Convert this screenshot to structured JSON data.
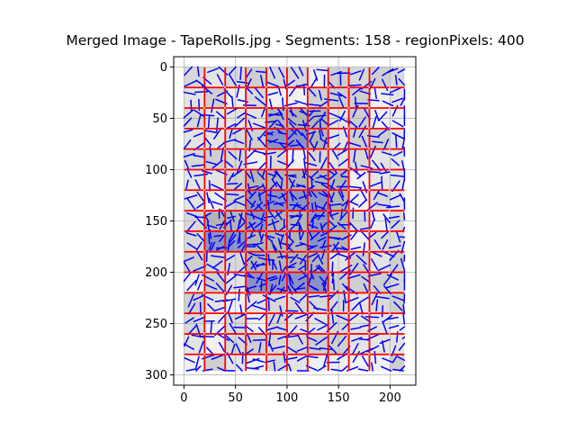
{
  "chart_data": {
    "type": "heatmap",
    "title": "Merged Image - TapeRolls.jpg - Segments: 158 - regionPixels: 400",
    "xlabel": "",
    "ylabel": "",
    "xlim": [
      -10,
      225
    ],
    "ylim": [
      310,
      -10
    ],
    "y_inverted": true,
    "grid": true,
    "x_ticks": [
      0,
      50,
      100,
      150,
      200
    ],
    "y_ticks": [
      0,
      50,
      100,
      150,
      200,
      250,
      300
    ],
    "image_extent": {
      "x": [
        0,
        214
      ],
      "y": [
        0,
        296
      ]
    },
    "cell_size": 20,
    "colors": {
      "grid_line": "#b0b0b0",
      "segment_boundary": "#ff0000",
      "direction_stroke": "#0000ff",
      "light_region": "#ebebeb",
      "mid_region": "#cdcdcd",
      "dark_region": "#b4b4b4",
      "highlight_region": "#8c93c4",
      "background_cells": [
        "#f0f0f0",
        "#e4e4e4",
        "#d8d8d8",
        "#cfcfcf"
      ]
    },
    "dark_regions": [
      {
        "x": [
          80,
          140
        ],
        "y": [
          40,
          80
        ]
      },
      {
        "x": [
          60,
          160
        ],
        "y": [
          100,
          140
        ]
      },
      {
        "x": [
          40,
          160
        ],
        "y": [
          140,
          180
        ]
      },
      {
        "x": [
          60,
          140
        ],
        "y": [
          180,
          220
        ]
      },
      {
        "x": [
          20,
          60
        ],
        "y": [
          140,
          180
        ]
      }
    ],
    "highlight_regions": [
      {
        "x": [
          80,
          120
        ],
        "y": [
          60,
          80
        ]
      },
      {
        "x": [
          60,
          140
        ],
        "y": [
          120,
          140
        ]
      },
      {
        "x": [
          60,
          80
        ],
        "y": [
          140,
          160
        ]
      },
      {
        "x": [
          120,
          140
        ],
        "y": [
          140,
          180
        ]
      },
      {
        "x": [
          60,
          140
        ],
        "y": [
          200,
          220
        ]
      },
      {
        "x": [
          20,
          60
        ],
        "y": [
          160,
          180
        ]
      }
    ],
    "segment_line_x": [
      20,
      40,
      60,
      80,
      100,
      120,
      140,
      160,
      180
    ],
    "segment_line_y": [
      20,
      40,
      60,
      80,
      100,
      120,
      140,
      160,
      180,
      200,
      220,
      240,
      260,
      280
    ]
  }
}
